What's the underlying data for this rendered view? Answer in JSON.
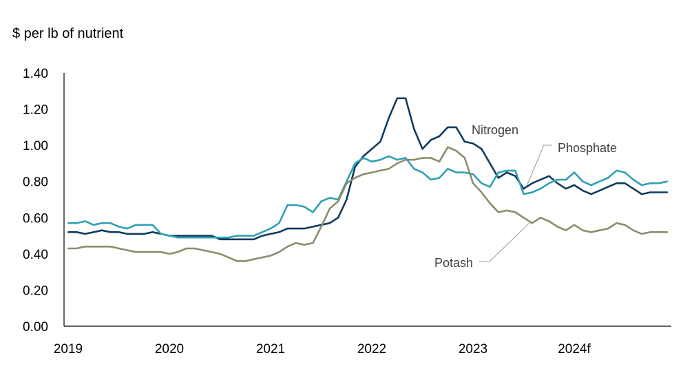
{
  "chart_data": {
    "type": "line",
    "ylabel": "$ per lb of nutrient",
    "ylim": [
      0,
      1.4
    ],
    "yticks": [
      "0.00",
      "0.20",
      "0.40",
      "0.60",
      "0.80",
      "1.00",
      "1.20",
      "1.40"
    ],
    "xticks": [
      "2019",
      "2020",
      "2021",
      "2022",
      "2023",
      "2024f"
    ],
    "x_start": "2019-01",
    "x_end": "2024-12",
    "grid": false,
    "series": [
      {
        "name": "Nitrogen",
        "color": "#0f3b5f",
        "values": [
          0.52,
          0.52,
          0.51,
          0.52,
          0.53,
          0.52,
          0.52,
          0.51,
          0.51,
          0.51,
          0.52,
          0.51,
          0.5,
          0.5,
          0.5,
          0.5,
          0.5,
          0.5,
          0.48,
          0.48,
          0.48,
          0.48,
          0.48,
          0.5,
          0.51,
          0.52,
          0.54,
          0.54,
          0.54,
          0.55,
          0.56,
          0.57,
          0.6,
          0.7,
          0.88,
          0.94,
          0.98,
          1.02,
          1.15,
          1.26,
          1.26,
          1.09,
          0.98,
          1.03,
          1.05,
          1.1,
          1.1,
          1.02,
          1.01,
          0.98,
          0.9,
          0.82,
          0.85,
          0.83,
          0.76,
          0.79,
          0.81,
          0.83,
          0.79,
          0.76,
          0.78,
          0.75,
          0.73,
          0.75,
          0.77,
          0.79,
          0.79,
          0.76,
          0.73,
          0.74,
          0.74,
          0.74
        ]
      },
      {
        "name": "Phosphate",
        "color": "#2fa0b4",
        "values": [
          0.57,
          0.57,
          0.58,
          0.56,
          0.57,
          0.57,
          0.55,
          0.54,
          0.56,
          0.56,
          0.56,
          0.51,
          0.5,
          0.49,
          0.49,
          0.49,
          0.49,
          0.49,
          0.49,
          0.49,
          0.5,
          0.5,
          0.5,
          0.52,
          0.54,
          0.57,
          0.67,
          0.67,
          0.66,
          0.63,
          0.69,
          0.71,
          0.7,
          0.8,
          0.9,
          0.93,
          0.91,
          0.92,
          0.94,
          0.92,
          0.93,
          0.87,
          0.85,
          0.81,
          0.82,
          0.87,
          0.85,
          0.85,
          0.84,
          0.79,
          0.77,
          0.85,
          0.86,
          0.86,
          0.73,
          0.74,
          0.76,
          0.79,
          0.81,
          0.81,
          0.85,
          0.8,
          0.78,
          0.8,
          0.82,
          0.86,
          0.85,
          0.81,
          0.78,
          0.79,
          0.79,
          0.8
        ]
      },
      {
        "name": "Potash",
        "color": "#8c8c6e",
        "values": [
          0.43,
          0.43,
          0.44,
          0.44,
          0.44,
          0.44,
          0.43,
          0.42,
          0.41,
          0.41,
          0.41,
          0.41,
          0.4,
          0.41,
          0.43,
          0.43,
          0.42,
          0.41,
          0.4,
          0.38,
          0.36,
          0.36,
          0.37,
          0.38,
          0.39,
          0.41,
          0.44,
          0.46,
          0.45,
          0.46,
          0.55,
          0.65,
          0.69,
          0.79,
          0.82,
          0.84,
          0.85,
          0.86,
          0.87,
          0.9,
          0.92,
          0.92,
          0.93,
          0.93,
          0.91,
          0.99,
          0.97,
          0.93,
          0.79,
          0.74,
          0.68,
          0.63,
          0.64,
          0.63,
          0.6,
          0.57,
          0.6,
          0.58,
          0.55,
          0.53,
          0.56,
          0.53,
          0.52,
          0.53,
          0.54,
          0.57,
          0.56,
          0.53,
          0.51,
          0.52,
          0.52,
          0.52
        ]
      }
    ]
  }
}
